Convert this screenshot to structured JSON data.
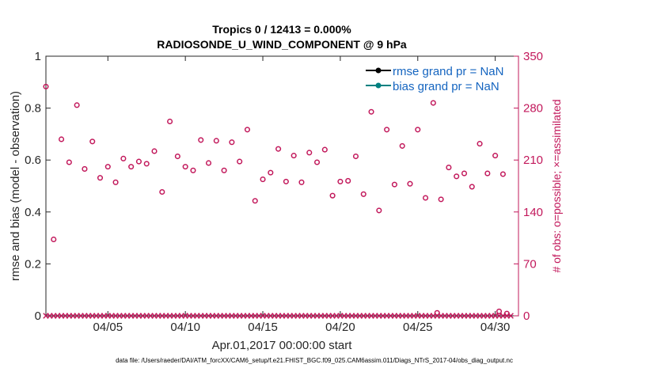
{
  "chart_data": {
    "type": "scatter",
    "title_line1": "Tropics 0 / 12413 = 0.000%",
    "title_line2": "RADIOSONDE_U_WIND_COMPONENT @ 9 hPa",
    "ylabel_left": "rmse and bias (model - observation)",
    "ylabel_right": "# of obs: o=possible; ×=assimilated",
    "xlabel": "Apr.01,2017 00:00:00 start",
    "footnote": "data file: /Users/raeder/DAI/ATM_forcXX/CAM6_setup/f.e21.FHIST_BGC.f09_025.CAM6assim.011/Diags_NTrS_2017-04/obs_diag_output.nc",
    "xlim": [
      1,
      31.5
    ],
    "ylim_left": [
      0,
      1
    ],
    "ylim_right": [
      0,
      350
    ],
    "x_ticks": [
      5,
      10,
      15,
      20,
      25,
      30
    ],
    "x_tick_labels": [
      "04/05",
      "04/10",
      "04/15",
      "04/20",
      "04/25",
      "04/30"
    ],
    "y_left_ticks": [
      0,
      0.2,
      0.4,
      0.6,
      0.8,
      1
    ],
    "y_left_tick_labels": [
      "0",
      "0.2",
      "0.4",
      "0.6",
      "0.8",
      "1"
    ],
    "y_right_ticks": [
      0,
      70,
      140,
      210,
      280,
      350
    ],
    "y_right_tick_labels": [
      "0",
      "70",
      "140",
      "210",
      "280",
      "350"
    ],
    "legend": [
      {
        "label": "rmse grand pr = NaN",
        "color": "#000000"
      },
      {
        "label": "bias grand pr = NaN",
        "color": "#008080"
      }
    ],
    "series_possible": {
      "name": "possible",
      "marker": "circle",
      "color": "#c2185b",
      "x": [
        1.0,
        1.5,
        2.0,
        2.5,
        3.0,
        3.5,
        4.0,
        4.5,
        5.0,
        5.5,
        6.0,
        6.5,
        7.0,
        7.5,
        8.0,
        8.5,
        9.0,
        9.5,
        10.0,
        10.5,
        11.0,
        11.5,
        12.0,
        12.5,
        13.0,
        13.5,
        14.0,
        14.5,
        15.0,
        15.5,
        16.0,
        16.5,
        17.0,
        17.5,
        18.0,
        18.5,
        19.0,
        19.5,
        20.0,
        20.5,
        21.0,
        21.5,
        22.0,
        22.5,
        23.0,
        23.5,
        24.0,
        24.5,
        25.0,
        25.5,
        26.0,
        26.25,
        26.5,
        27.0,
        27.5,
        28.0,
        28.5,
        29.0,
        29.5,
        30.0,
        30.25,
        30.5,
        30.75
      ],
      "y": [
        309,
        103,
        238,
        207,
        284,
        198,
        235,
        186,
        201,
        180,
        212,
        201,
        208,
        205,
        222,
        167,
        262,
        215,
        201,
        196,
        237,
        206,
        236,
        196,
        234,
        208,
        251,
        155,
        184,
        193,
        225,
        181,
        216,
        180,
        220,
        207,
        224,
        162,
        181,
        182,
        215,
        164,
        275,
        142,
        251,
        177,
        229,
        178,
        251,
        159,
        287,
        4,
        157,
        200,
        188,
        192,
        174,
        232,
        192,
        216,
        6,
        191,
        3
      ]
    },
    "series_assimilated": {
      "name": "assimilated",
      "marker": "x",
      "color": "#c2185b",
      "x_start": 1.0,
      "x_end": 31.0,
      "x_step": 0.25,
      "value": 0
    }
  }
}
